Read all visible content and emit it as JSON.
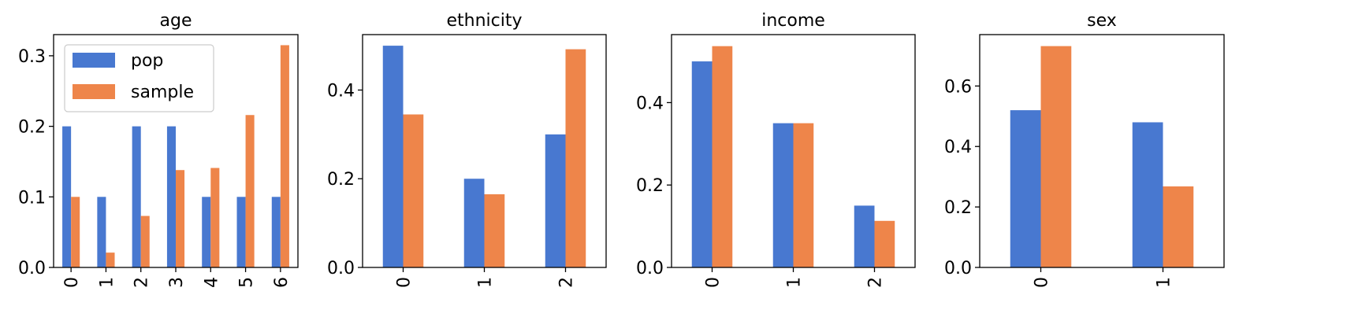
{
  "colors": {
    "pop": "#4878d0",
    "sample": "#ee854a"
  },
  "legend": {
    "placement": "top-left",
    "subplot": "age"
  },
  "chart_data": [
    {
      "type": "bar",
      "title": "age",
      "categories": [
        "0",
        "1",
        "2",
        "3",
        "4",
        "5",
        "6"
      ],
      "series": [
        {
          "name": "pop",
          "values": [
            0.2,
            0.1,
            0.2,
            0.2,
            0.1,
            0.1,
            0.1
          ]
        },
        {
          "name": "sample",
          "values": [
            0.1,
            0.021,
            0.073,
            0.138,
            0.141,
            0.216,
            0.315
          ]
        }
      ],
      "ylim": [
        0,
        0.33
      ],
      "yticks": [
        "0.0",
        "0.1",
        "0.2",
        "0.3"
      ],
      "ytick_values": [
        0,
        0.1,
        0.2,
        0.3
      ],
      "grid": false
    },
    {
      "type": "bar",
      "title": "ethnicity",
      "categories": [
        "0",
        "1",
        "2"
      ],
      "series": [
        {
          "name": "pop",
          "values": [
            0.5,
            0.2,
            0.3
          ]
        },
        {
          "name": "sample",
          "values": [
            0.345,
            0.165,
            0.492
          ]
        }
      ],
      "ylim": [
        0,
        0.525
      ],
      "yticks": [
        "0.0",
        "0.2",
        "0.4"
      ],
      "ytick_values": [
        0,
        0.2,
        0.4
      ],
      "grid": false
    },
    {
      "type": "bar",
      "title": "income",
      "categories": [
        "0",
        "1",
        "2"
      ],
      "series": [
        {
          "name": "pop",
          "values": [
            0.5,
            0.35,
            0.15
          ]
        },
        {
          "name": "sample",
          "values": [
            0.537,
            0.35,
            0.113
          ]
        }
      ],
      "ylim": [
        0,
        0.565
      ],
      "yticks": [
        "0.0",
        "0.2",
        "0.4"
      ],
      "ytick_values": [
        0,
        0.2,
        0.4
      ],
      "grid": false
    },
    {
      "type": "bar",
      "title": "sex",
      "categories": [
        "0",
        "1"
      ],
      "series": [
        {
          "name": "pop",
          "values": [
            0.52,
            0.48
          ]
        },
        {
          "name": "sample",
          "values": [
            0.732,
            0.268
          ]
        }
      ],
      "ylim": [
        0,
        0.77
      ],
      "yticks": [
        "0.0",
        "0.2",
        "0.4",
        "0.6"
      ],
      "ytick_values": [
        0,
        0.2,
        0.4,
        0.6
      ],
      "grid": false
    }
  ]
}
